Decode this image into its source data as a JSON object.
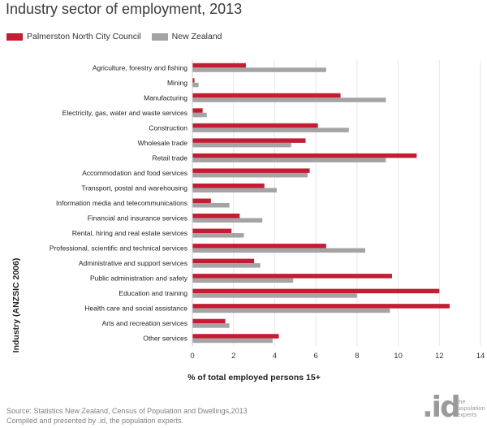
{
  "title": "Industry sector of employment, 2013",
  "legend": [
    {
      "label": "Palmerston North City Council",
      "color": "#c21d32"
    },
    {
      "label": "New Zealand",
      "color": "#a4a4a4"
    }
  ],
  "footer": {
    "source": "Source: Statistics New Zealand, Census of Population and Dwellings,2013",
    "compiled": "Compiled and presented by .id, the population experts."
  },
  "logo": {
    "mark": ".id",
    "tag1": "the",
    "tag2": "population",
    "tag3": "experts"
  },
  "chart_data": {
    "type": "bar",
    "orientation": "horizontal",
    "title": "Industry sector of employment, 2013",
    "xlabel": "% of total employed persons 15+",
    "ylabel": "Industry (ANZSIC 2006)",
    "xlim": [
      0,
      14
    ],
    "xticks": [
      0,
      2,
      4,
      6,
      8,
      10,
      12,
      14
    ],
    "grid": true,
    "legend_position": "top-left",
    "categories": [
      "Agriculture, forestry and fishing",
      "Mining",
      "Manufacturing",
      "Electricity, gas, water and waste services",
      "Construction",
      "Wholesale trade",
      "Retail trade",
      "Accommodation and food services",
      "Transport, postal and warehousing",
      "Information media and telecommunications",
      "Financial and insurance services",
      "Rental, hiring and real estate services",
      "Professional, scientific and technical services",
      "Administrative and support services",
      "Public administration and safety",
      "Education and training",
      "Health care and social assistance",
      "Arts and recreation services",
      "Other services"
    ],
    "series": [
      {
        "name": "Palmerston North City Council",
        "color": "#c21d32",
        "values": [
          2.6,
          0.1,
          7.2,
          0.5,
          6.1,
          5.5,
          10.9,
          5.7,
          3.5,
          0.9,
          2.3,
          1.9,
          6.5,
          3.0,
          9.7,
          12.0,
          12.5,
          1.6,
          4.2
        ]
      },
      {
        "name": "New Zealand",
        "color": "#a4a4a4",
        "values": [
          6.5,
          0.3,
          9.4,
          0.7,
          7.6,
          4.8,
          9.4,
          5.6,
          4.1,
          1.8,
          3.4,
          2.5,
          8.4,
          3.3,
          4.9,
          8.0,
          9.6,
          1.8,
          3.9
        ]
      }
    ]
  }
}
